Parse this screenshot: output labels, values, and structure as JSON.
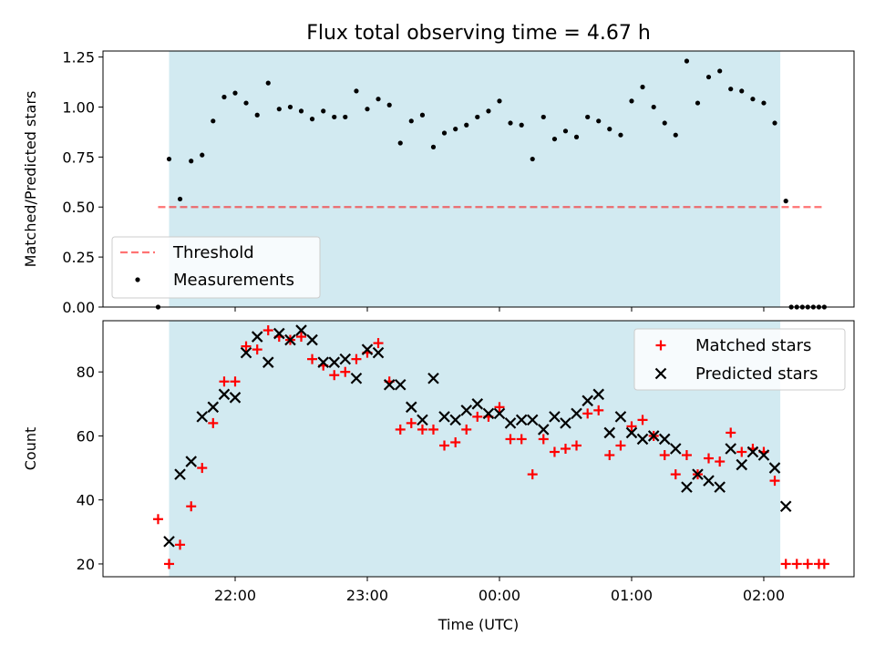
{
  "title": "Flux total observing time = 4.67 h",
  "colors": {
    "observing_span": "#add8e6",
    "threshold": "#ff0000",
    "measurement": "#000000",
    "matched": "#ff0000",
    "predicted": "#000000"
  },
  "chart_data": [
    {
      "type": "scatter",
      "title": "Flux total observing time = 4.67 h",
      "ylabel": "Matched/Predicted stars",
      "xlabel": "",
      "ylim": [
        0,
        1.28
      ],
      "yticks": [
        0.0,
        0.25,
        0.5,
        0.75,
        1.0,
        1.25
      ],
      "ytick_labels": [
        "0.00",
        "0.25",
        "0.50",
        "0.75",
        "1.00",
        "1.25"
      ],
      "observing_span_hours": [
        21.5,
        26.125
      ],
      "legend_position": "lower-left",
      "threshold": {
        "name": "Threshold",
        "y": 0.5,
        "x_range": [
          21.417,
          26.458
        ]
      },
      "series": [
        {
          "name": "Measurements",
          "x": [
            21.417,
            21.5,
            21.583,
            21.667,
            21.75,
            21.833,
            21.917,
            22.0,
            22.083,
            22.167,
            22.25,
            22.333,
            22.417,
            22.5,
            22.583,
            22.667,
            22.75,
            22.833,
            22.917,
            23.0,
            23.083,
            23.167,
            23.25,
            23.333,
            23.417,
            23.5,
            23.583,
            23.667,
            23.75,
            23.833,
            23.917,
            24.0,
            24.083,
            24.167,
            24.25,
            24.333,
            24.417,
            24.5,
            24.583,
            24.667,
            24.75,
            24.833,
            24.917,
            25.0,
            25.083,
            25.167,
            25.25,
            25.333,
            25.417,
            25.5,
            25.583,
            25.667,
            25.75,
            25.833,
            25.917,
            26.0,
            26.083,
            26.167,
            26.25,
            26.333,
            26.417
          ],
          "y": [
            0.0,
            0.74,
            0.54,
            0.73,
            0.76,
            0.93,
            1.05,
            1.07,
            1.02,
            0.96,
            1.12,
            0.99,
            1.0,
            0.98,
            0.94,
            0.98,
            0.95,
            0.95,
            1.08,
            0.99,
            1.04,
            1.01,
            0.82,
            0.93,
            0.96,
            0.8,
            0.87,
            0.89,
            0.91,
            0.95,
            0.98,
            1.03,
            0.92,
            0.91,
            0.74,
            0.95,
            0.84,
            0.88,
            0.85,
            0.95,
            0.93,
            0.89,
            0.86,
            1.03,
            1.1,
            1.0,
            0.92,
            0.86,
            1.23,
            1.02,
            1.15,
            1.18,
            1.09,
            1.08,
            1.04,
            1.02,
            0.92,
            0.53,
            0.0,
            0.0,
            0.0
          ]
        }
      ],
      "x_extra_points": [
        26.208,
        26.292,
        26.375,
        26.458
      ],
      "x_extra_values": [
        0.0,
        0.0,
        0.0,
        0.0
      ]
    },
    {
      "type": "scatter",
      "xlabel": "Time (UTC)",
      "ylabel": "Count",
      "ylim": [
        16,
        96
      ],
      "yticks": [
        20,
        40,
        60,
        80
      ],
      "ytick_labels": [
        "20",
        "40",
        "60",
        "80"
      ],
      "xlim": [
        21.0,
        26.683
      ],
      "xticks": [
        22,
        23,
        24,
        25,
        26
      ],
      "xtick_labels": [
        "22:00",
        "23:00",
        "00:00",
        "01:00",
        "02:00"
      ],
      "observing_span_hours": [
        21.5,
        26.125
      ],
      "legend_position": "upper-right",
      "series": [
        {
          "name": "Matched stars",
          "marker": "plus",
          "x": [
            21.417,
            21.5,
            21.583,
            21.667,
            21.75,
            21.833,
            21.917,
            22.0,
            22.083,
            22.167,
            22.25,
            22.333,
            22.417,
            22.5,
            22.583,
            22.667,
            22.75,
            22.833,
            22.917,
            23.0,
            23.083,
            23.167,
            23.25,
            23.333,
            23.417,
            23.5,
            23.583,
            23.667,
            23.75,
            23.833,
            23.917,
            24.0,
            24.083,
            24.167,
            24.25,
            24.333,
            24.417,
            24.5,
            24.583,
            24.667,
            24.75,
            24.833,
            24.917,
            25.0,
            25.083,
            25.167,
            25.25,
            25.333,
            25.417,
            25.5,
            25.583,
            25.667,
            25.75,
            25.833,
            25.917,
            26.0,
            26.083,
            26.167,
            26.25,
            26.333,
            26.417
          ],
          "y": [
            34,
            20,
            26,
            38,
            50,
            64,
            77,
            77,
            88,
            87,
            93,
            91,
            90,
            91,
            84,
            82,
            79,
            80,
            84,
            86,
            89,
            77,
            62,
            64,
            62,
            62,
            57,
            58,
            62,
            66,
            66,
            69,
            59,
            59,
            48,
            59,
            55,
            56,
            57,
            67,
            68,
            54,
            57,
            63,
            65,
            60,
            54,
            48,
            54,
            48,
            53,
            52,
            61,
            55,
            56,
            55,
            46,
            20,
            20,
            20,
            20
          ],
          "x_tail": [
            26.458
          ],
          "y_tail": [
            20
          ]
        },
        {
          "name": "Predicted stars",
          "marker": "x",
          "x": [
            21.5,
            21.583,
            21.667,
            21.75,
            21.833,
            21.917,
            22.0,
            22.083,
            22.167,
            22.25,
            22.333,
            22.417,
            22.5,
            22.583,
            22.667,
            22.75,
            22.833,
            22.917,
            23.0,
            23.083,
            23.167,
            23.25,
            23.333,
            23.417,
            23.5,
            23.583,
            23.667,
            23.75,
            23.833,
            23.917,
            24.0,
            24.083,
            24.167,
            24.25,
            24.333,
            24.417,
            24.5,
            24.583,
            24.667,
            24.75,
            24.833,
            24.917,
            25.0,
            25.083,
            25.167,
            25.25,
            25.333,
            25.417,
            25.5,
            25.583,
            25.667,
            25.75,
            25.833,
            25.917,
            26.0,
            26.083,
            26.167
          ],
          "y": [
            27,
            48,
            52,
            66,
            69,
            73,
            72,
            86,
            91,
            83,
            92,
            90,
            93,
            90,
            83,
            83,
            84,
            78,
            87,
            86,
            76,
            76,
            69,
            65,
            78,
            66,
            65,
            68,
            70,
            67,
            67,
            64,
            65,
            65,
            62,
            66,
            64,
            67,
            71,
            73,
            61,
            66,
            61,
            59,
            60,
            59,
            56,
            44,
            48,
            46,
            44,
            56,
            51,
            55,
            54,
            50,
            38
          ]
        }
      ]
    }
  ]
}
